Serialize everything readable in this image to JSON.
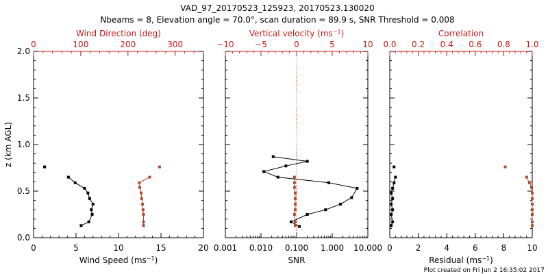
{
  "title_line1": "VAD_97_20170523_125923, 20170523.130020",
  "title_line2": "Nbeams = 8, Elevation angle = 70.0°, scan duration = 89.9 s, SNR Threshold = 0.008",
  "footer": "Plot created on Fri Jun  2 16:35:02 2017",
  "colors": {
    "black": "#000000",
    "red": "#cc1a1a",
    "brown": "#b34a2e"
  },
  "chart_data": [
    {
      "type": "line",
      "ylabel_main": "z (km AGL)",
      "ylabel_sup": "",
      "y_ticks": [
        "0.0",
        "0.5",
        "1.0",
        "1.5",
        "2.0"
      ],
      "ylim": [
        0,
        2
      ],
      "bottom_axis": {
        "label_main": "Wind Speed (ms",
        "label_sup": "−1",
        "label_tail": ")",
        "ticks": [
          "0",
          "5",
          "10",
          "15",
          "20"
        ],
        "range": [
          0,
          20
        ],
        "scale": "linear"
      },
      "top_axis": {
        "label_main": "Wind Direction (deg)",
        "label_sup": "",
        "label_tail": "",
        "ticks": [
          "0",
          "100",
          "200",
          "300"
        ],
        "range": [
          0,
          360
        ],
        "scale": "linear"
      },
      "series": [
        {
          "axis": "bottom",
          "color": "#000000",
          "points": [
            [
              5.6,
              0.13
            ],
            [
              6.5,
              0.17
            ],
            [
              6.9,
              0.25
            ],
            [
              6.8,
              0.3
            ],
            [
              7.0,
              0.36
            ],
            [
              6.6,
              0.42
            ],
            [
              6.4,
              0.48
            ],
            [
              6.0,
              0.53
            ],
            [
              4.9,
              0.59
            ],
            [
              4.1,
              0.65
            ]
          ],
          "isolated": [
            [
              1.3,
              0.76
            ]
          ]
        },
        {
          "axis": "top",
          "color": "#b34a2e",
          "points": [
            [
              233,
              0.13
            ],
            [
              233,
              0.17
            ],
            [
              233,
              0.25
            ],
            [
              232,
              0.3
            ],
            [
              231,
              0.36
            ],
            [
              229,
              0.42
            ],
            [
              228,
              0.48
            ],
            [
              225,
              0.54
            ],
            [
              224,
              0.59
            ],
            [
              246,
              0.65
            ]
          ],
          "isolated": [
            [
              267,
              0.76
            ]
          ]
        }
      ]
    },
    {
      "type": "line",
      "ylabel_main": "",
      "ylabel_sup": "",
      "y_ticks": [],
      "ylim": [
        0,
        2
      ],
      "bottom_axis": {
        "label_main": "SNR",
        "label_sup": "",
        "label_tail": "",
        "ticks": [
          "0.001",
          "0.010",
          "0.100",
          "1.000",
          "10.000"
        ],
        "tick_values": [
          0.001,
          0.01,
          0.1,
          1,
          10
        ],
        "range": [
          0.001,
          10
        ],
        "scale": "log"
      },
      "top_axis": {
        "label_main": "Vertical velocity (ms",
        "label_sup": "−1",
        "label_tail": ")",
        "ticks": [
          "−10",
          "−5",
          "0",
          "5",
          "10"
        ],
        "tick_values": [
          -10,
          -5,
          0,
          5,
          10
        ],
        "range": [
          -10,
          10
        ],
        "scale": "linear",
        "zero_line": true
      },
      "series": [
        {
          "axis": "bottom",
          "color": "#000000",
          "points": [
            [
              0.12,
              0.12
            ],
            [
              0.07,
              0.17
            ],
            [
              0.2,
              0.25
            ],
            [
              0.65,
              0.3
            ],
            [
              1.7,
              0.36
            ],
            [
              3.5,
              0.43
            ],
            [
              5.0,
              0.53
            ],
            [
              0.8,
              0.59
            ],
            [
              0.03,
              0.65
            ],
            [
              0.012,
              0.71
            ],
            [
              0.05,
              0.77
            ],
            [
              0.2,
              0.82
            ],
            [
              0.022,
              0.87
            ]
          ],
          "isolated": []
        },
        {
          "axis": "top",
          "color": "#b34a2e",
          "points": [
            [
              -0.2,
              0.13
            ],
            [
              -0.2,
              0.17
            ],
            [
              -0.3,
              0.25
            ],
            [
              -0.2,
              0.3
            ],
            [
              -0.2,
              0.36
            ],
            [
              -0.2,
              0.42
            ],
            [
              -0.2,
              0.48
            ],
            [
              -0.3,
              0.54
            ],
            [
              -0.3,
              0.59
            ],
            [
              -0.3,
              0.65
            ]
          ],
          "isolated": []
        }
      ]
    },
    {
      "type": "line",
      "ylabel_main": "",
      "ylabel_sup": "",
      "y_ticks": [],
      "ylim": [
        0,
        2
      ],
      "bottom_axis": {
        "label_main": "Residual (ms",
        "label_sup": "−1",
        "label_tail": ")",
        "ticks": [
          "0",
          "2",
          "4",
          "6",
          "8",
          "10"
        ],
        "range": [
          0,
          10
        ],
        "scale": "linear"
      },
      "top_axis": {
        "label_main": "Correlation",
        "label_sup": "",
        "label_tail": "",
        "ticks": [
          "0.0",
          "0.2",
          "0.4",
          "0.6",
          "0.8",
          "1.0"
        ],
        "range": [
          0,
          1
        ],
        "scale": "linear"
      },
      "series": [
        {
          "axis": "bottom",
          "color": "#000000",
          "points": [
            [
              0.1,
              0.13
            ],
            [
              0.2,
              0.17
            ],
            [
              0.1,
              0.25
            ],
            [
              0.2,
              0.3
            ],
            [
              0.1,
              0.36
            ],
            [
              0.2,
              0.42
            ],
            [
              0.1,
              0.48
            ],
            [
              0.2,
              0.53
            ],
            [
              0.3,
              0.59
            ],
            [
              0.4,
              0.65
            ]
          ],
          "isolated": [
            [
              0.3,
              0.76
            ]
          ]
        },
        {
          "axis": "top",
          "color": "#b34a2e",
          "points": [
            [
              1.0,
              0.13
            ],
            [
              1.0,
              0.17
            ],
            [
              1.0,
              0.25
            ],
            [
              1.0,
              0.3
            ],
            [
              1.0,
              0.36
            ],
            [
              1.0,
              0.42
            ],
            [
              1.0,
              0.48
            ],
            [
              0.995,
              0.54
            ],
            [
              0.98,
              0.59
            ],
            [
              0.96,
              0.65
            ]
          ],
          "isolated": [
            [
              0.81,
              0.76
            ]
          ]
        }
      ]
    }
  ]
}
